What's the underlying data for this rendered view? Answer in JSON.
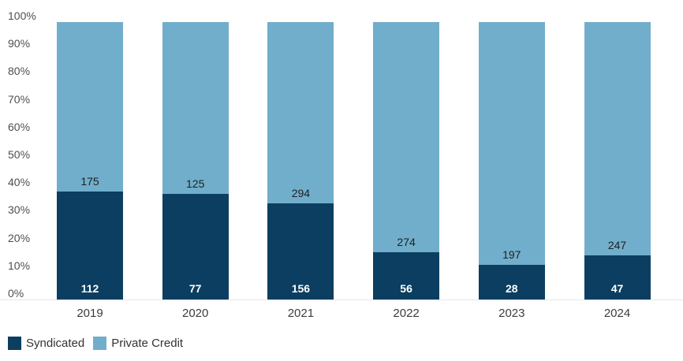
{
  "chart_data": {
    "type": "bar",
    "variant": "stacked-100-percent",
    "title": "",
    "xlabel": "",
    "ylabel": "",
    "categories": [
      "2019",
      "2020",
      "2021",
      "2022",
      "2023",
      "2024"
    ],
    "series": [
      {
        "name": "Syndicated",
        "color": "#0B3E61",
        "values": [
          112,
          77,
          156,
          56,
          28,
          47
        ]
      },
      {
        "name": "Private Credit",
        "color": "#71AECB",
        "values": [
          175,
          125,
          294,
          274,
          197,
          247
        ]
      }
    ],
    "y_ticks": [
      "0%",
      "10%",
      "20%",
      "30%",
      "40%",
      "50%",
      "60%",
      "70%",
      "80%",
      "90%",
      "100%"
    ],
    "ylim": [
      0,
      100
    ],
    "grid": false,
    "legend_position": "bottom-left"
  },
  "legend": {
    "items": [
      {
        "label": "Syndicated",
        "color": "#0B3E61"
      },
      {
        "label": "Private Credit",
        "color": "#71AECB"
      }
    ]
  },
  "colors": {
    "background": "#FFFFFF",
    "axis_text": "#4F4F4F",
    "category_text": "#3C3C3C",
    "value_label_on_dark": "#FFFFFF",
    "value_label_on_light": "#1F1F1F",
    "baseline": "#E7E7E7"
  }
}
